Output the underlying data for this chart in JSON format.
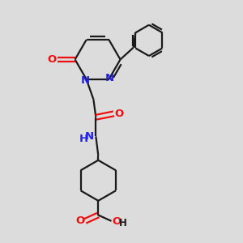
{
  "bg_color": "#dcdcdc",
  "bond_color": "#1a1a1a",
  "N_color": "#2020ee",
  "O_color": "#ee1010",
  "NH_color": "#2020ee",
  "line_width": 1.6,
  "font_size": 9.5,
  "fig_size": [
    3.0,
    3.0
  ],
  "dpi": 100,
  "xlim": [
    0,
    10
  ],
  "ylim": [
    0,
    10
  ]
}
